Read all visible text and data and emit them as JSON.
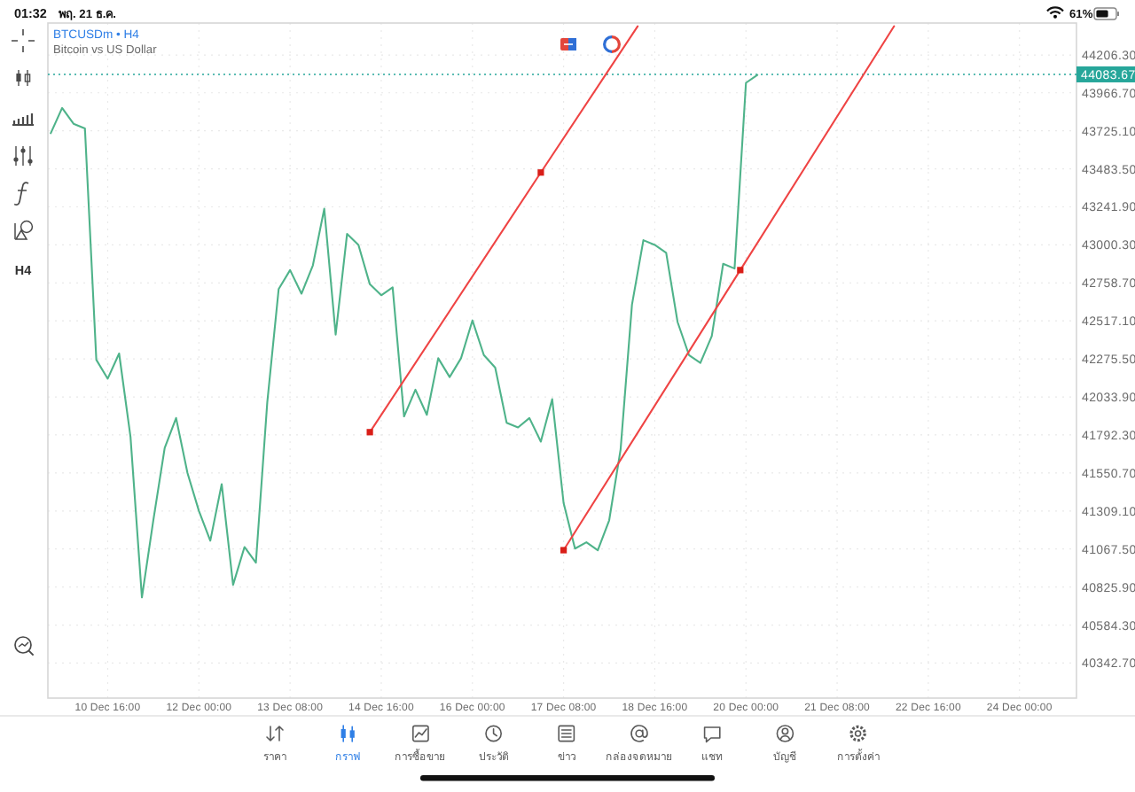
{
  "chart_data": {
    "type": "line",
    "title": "BTCUSDm • H4",
    "subtitle": "Bitcoin vs US Dollar",
    "x": [
      "--12-09T20:00",
      "--12-10T00:00",
      "--12-10T04:00",
      "--12-10T08:00",
      "--12-10T12:00",
      "--12-10T16:00",
      "--12-10T20:00",
      "--12-11T00:00",
      "--12-11T04:00",
      "--12-11T08:00",
      "--12-11T12:00",
      "--12-11T16:00",
      "--12-11T20:00",
      "--12-12T00:00",
      "--12-12T04:00",
      "--12-12T08:00",
      "--12-12T12:00",
      "--12-12T16:00",
      "--12-12T20:00",
      "--12-13T00:00",
      "--12-13T04:00",
      "--12-13T08:00",
      "--12-13T12:00",
      "--12-13T16:00",
      "--12-13T20:00",
      "--12-14T00:00",
      "--12-14T04:00",
      "--12-14T08:00",
      "--12-14T12:00",
      "--12-14T16:00",
      "--12-14T20:00",
      "--12-15T00:00",
      "--12-15T04:00",
      "--12-15T08:00",
      "--12-15T12:00",
      "--12-15T16:00",
      "--12-15T20:00",
      "--12-16T00:00",
      "--12-16T04:00",
      "--12-16T08:00",
      "--12-16T12:00",
      "--12-16T16:00",
      "--12-16T20:00",
      "--12-17T00:00",
      "--12-17T04:00",
      "--12-17T08:00",
      "--12-17T12:00",
      "--12-17T16:00",
      "--12-17T20:00",
      "--12-18T00:00",
      "--12-18T04:00",
      "--12-18T08:00",
      "--12-18T12:00",
      "--12-18T16:00",
      "--12-18T20:00",
      "--12-19T00:00",
      "--12-19T04:00",
      "--12-19T08:00",
      "--12-19T12:00",
      "--12-19T16:00",
      "--12-19T20:00",
      "--12-20T00:00",
      "--12-20T04:00"
    ],
    "series": [
      {
        "color": "#4fb38a",
        "values": [
          43710,
          43870,
          43770,
          43740,
          42270,
          42150,
          42310,
          41780,
          40760,
          41250,
          41710,
          41900,
          41550,
          41310,
          41120,
          41480,
          40840,
          41080,
          40980,
          42000,
          42720,
          42840,
          42690,
          42870,
          43230,
          42430,
          43070,
          43000,
          42750,
          42680,
          42730,
          41910,
          42080,
          41920,
          42280,
          42160,
          42280,
          42520,
          42300,
          42220,
          41870,
          41840,
          41900,
          41750,
          42020,
          41360,
          41070,
          41110,
          41060,
          41250,
          41700,
          42620,
          43030,
          43000,
          42950,
          42510,
          42300,
          42250,
          42420,
          42880,
          42850,
          44030,
          44080
        ]
      },
      {
        "type": "line",
        "color": "#ef4444",
        "x": [
          "--12-14T12:00",
          "--12-17T00:00",
          "--12-18T10:00"
        ],
        "values": [
          41810,
          43460,
          44390
        ]
      },
      {
        "type": "line",
        "color": "#ef4444",
        "x": [
          "--12-17T08:00",
          "--12-19T22:00",
          "--12-22T04:00"
        ],
        "values": [
          41060,
          42840,
          44390
        ]
      },
      {
        "type": "scatter",
        "marker": "square",
        "color": "#d91e18",
        "x": [
          "--12-14T12:00",
          "--12-17T00:00",
          "--12-17T08:00",
          "--12-19T22:00"
        ],
        "values": [
          41810,
          43460,
          41060,
          42840
        ]
      }
    ],
    "xlim": [
      "--12-09T19:00",
      "--12-24T20:00"
    ],
    "xticks": [
      {
        "value": "--12-10T16:00",
        "label": "10 Dec 16:00"
      },
      {
        "value": "--12-12T00:00",
        "label": "12 Dec 00:00"
      },
      {
        "value": "--12-13T08:00",
        "label": "13 Dec 08:00"
      },
      {
        "value": "--12-14T16:00",
        "label": "14 Dec 16:00"
      },
      {
        "value": "--12-16T00:00",
        "label": "16 Dec 00:00"
      },
      {
        "value": "--12-17T08:00",
        "label": "17 Dec 08:00"
      },
      {
        "value": "--12-18T16:00",
        "label": "18 Dec 16:00"
      },
      {
        "value": "--12-20T00:00",
        "label": "20 Dec 00:00"
      },
      {
        "value": "--12-21T08:00",
        "label": "21 Dec 08:00"
      },
      {
        "value": "--12-22T16:00",
        "label": "22 Dec 16:00"
      },
      {
        "value": "--12-24T00:00",
        "label": "24 Dec 00:00"
      }
    ],
    "ylim": [
      40120,
      44410
    ],
    "yticks": [
      {
        "value": 44206.3,
        "label": "44206.30"
      },
      {
        "value": 43966.7,
        "label": "43966.70"
      },
      {
        "value": 43725.1,
        "label": "43725.10"
      },
      {
        "value": 43483.5,
        "label": "43483.50"
      },
      {
        "value": 43241.9,
        "label": "43241.90"
      },
      {
        "value": 43000.3,
        "label": "43000.30"
      },
      {
        "value": 42758.7,
        "label": "42758.70"
      },
      {
        "value": 42517.1,
        "label": "42517.10"
      },
      {
        "value": 42275.5,
        "label": "42275.50"
      },
      {
        "value": 42033.9,
        "label": "42033.90"
      },
      {
        "value": 41792.3,
        "label": "41792.30"
      },
      {
        "value": 41550.7,
        "label": "41550.70"
      },
      {
        "value": 41309.1,
        "label": "41309.10"
      },
      {
        "value": 41067.5,
        "label": "41067.50"
      },
      {
        "value": 40825.9,
        "label": "40825.90"
      },
      {
        "value": 40584.3,
        "label": "40584.30"
      },
      {
        "value": 40342.7,
        "label": "40342.70"
      }
    ],
    "ref_lines": [
      {
        "axis": "y",
        "value": 44083.67,
        "label": "44083.67",
        "color": "#26a69a",
        "line_style": "dotted"
      }
    ],
    "grid": true,
    "annotations": [
      "01:32",
      "พฤ. 21 ธ.ค.",
      "61%",
      "H4",
      "ราคา",
      "กราฟ",
      "การซื้อขาย",
      "ประวัติ",
      "ข่าว",
      "กล่องจดหมาย",
      "แชท",
      "บัญชี",
      "การตั้งค่า"
    ]
  }
}
